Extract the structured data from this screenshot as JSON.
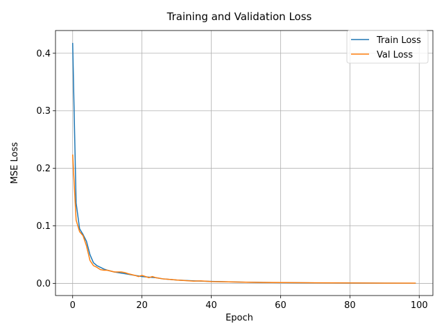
{
  "chart_data": {
    "type": "line",
    "title": "Training and Validation Loss",
    "xlabel": "Epoch",
    "ylabel": "MSE Loss",
    "xlim": [
      -4.95,
      103.95
    ],
    "ylim": [
      -0.021,
      0.4395
    ],
    "xticks": [
      0,
      20,
      40,
      60,
      80,
      100
    ],
    "yticks": [
      0.0,
      0.1,
      0.2,
      0.3,
      0.4
    ],
    "xtick_labels": [
      "0",
      "20",
      "40",
      "60",
      "80",
      "100"
    ],
    "ytick_labels": [
      "0.0",
      "0.1",
      "0.2",
      "0.3",
      "0.4"
    ],
    "grid": true,
    "legend_position": "top-right",
    "series": [
      {
        "name": "Train Loss",
        "color": "#1f77b4",
        "x": [
          0,
          1,
          2,
          3,
          4,
          5,
          6,
          7,
          8,
          9,
          10,
          12,
          14,
          16,
          18,
          20,
          22,
          24,
          26,
          28,
          30,
          35,
          40,
          45,
          50,
          55,
          60,
          70,
          80,
          90,
          99
        ],
        "y": [
          0.418,
          0.14,
          0.095,
          0.085,
          0.073,
          0.05,
          0.036,
          0.031,
          0.028,
          0.025,
          0.023,
          0.02,
          0.018,
          0.016,
          0.014,
          0.012,
          0.011,
          0.01,
          0.008,
          0.007,
          0.006,
          0.0045,
          0.0035,
          0.0028,
          0.0022,
          0.0018,
          0.0015,
          0.001,
          0.0007,
          0.0005,
          0.0004
        ]
      },
      {
        "name": "Val Loss",
        "color": "#ff7f0e",
        "x": [
          0,
          1,
          2,
          3,
          4,
          5,
          6,
          7,
          8,
          9,
          10,
          12,
          14,
          15,
          16,
          18,
          19,
          20,
          21,
          22,
          23,
          24,
          26,
          28,
          30,
          35,
          37,
          40,
          45,
          50,
          55,
          60,
          70,
          80,
          90,
          99
        ],
        "y": [
          0.224,
          0.11,
          0.09,
          0.083,
          0.065,
          0.04,
          0.031,
          0.028,
          0.024,
          0.023,
          0.023,
          0.02,
          0.02,
          0.019,
          0.017,
          0.014,
          0.012,
          0.014,
          0.012,
          0.01,
          0.012,
          0.01,
          0.008,
          0.007,
          0.006,
          0.004,
          0.0045,
          0.0033,
          0.0028,
          0.0022,
          0.0018,
          0.0016,
          0.0011,
          0.0008,
          0.0006,
          0.0005
        ]
      }
    ]
  }
}
